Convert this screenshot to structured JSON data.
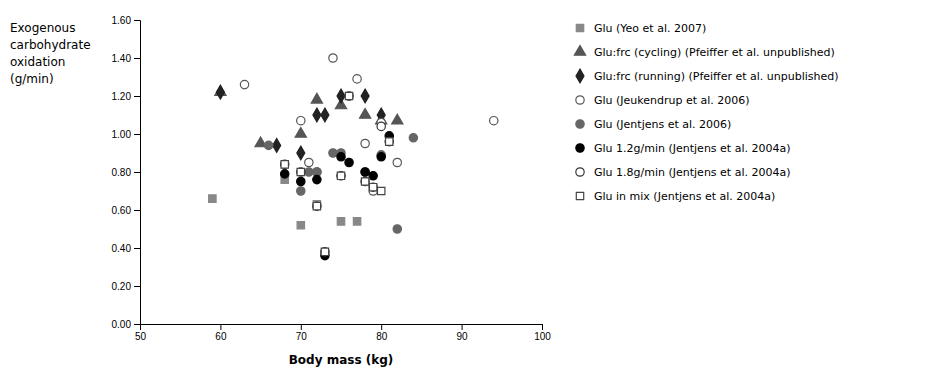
{
  "chart_data": {
    "type": "scatter",
    "xlabel": "Body mass (kg)",
    "ylabel": [
      "Exogenous",
      "carbohydrate",
      "oxidation",
      "(g/min)"
    ],
    "xlim": [
      50,
      100
    ],
    "ylim": [
      0.0,
      1.6
    ],
    "xticks": [
      50,
      60,
      70,
      80,
      90,
      100
    ],
    "yticks": [
      {
        "value": 0.0,
        "label": "0.00"
      },
      {
        "value": 0.2,
        "label": "0.20"
      },
      {
        "value": 0.4,
        "label": "0.40"
      },
      {
        "value": 0.6,
        "label": "0.60"
      },
      {
        "value": 0.8,
        "label": "0.80"
      },
      {
        "value": 1.0,
        "label": "1.00"
      },
      {
        "value": 1.2,
        "label": "1.20"
      },
      {
        "value": 1.4,
        "label": "1.40"
      },
      {
        "value": 1.6,
        "label": "1.60"
      }
    ],
    "grid": false,
    "legend": "right",
    "series": [
      {
        "name": "Glu (Yeo et al. 2007)",
        "color": "#888888",
        "marker": "square",
        "x": [
          59,
          68,
          70,
          72,
          75,
          77
        ],
        "values": [
          0.66,
          0.76,
          0.52,
          0.63,
          0.54,
          0.54
        ]
      },
      {
        "name": "Glu:frc (cycling) (Pfeiffer et al. unpublished)",
        "color": "#555555",
        "marker": "triangle",
        "x": [
          60,
          65,
          70,
          72,
          75,
          78,
          80,
          82
        ],
        "values": [
          1.22,
          0.95,
          1.0,
          1.18,
          1.15,
          1.1,
          1.07,
          1.07
        ]
      },
      {
        "name": "Glu:frc (running) (Pfeiffer et al. unpublished)",
        "color": "#222222",
        "marker": "diamond",
        "x": [
          60,
          67,
          70,
          72,
          73,
          75,
          78,
          80
        ],
        "values": [
          1.22,
          0.94,
          0.9,
          1.1,
          1.1,
          1.2,
          1.2,
          1.1
        ]
      },
      {
        "name": "Glu (Jeukendrup et al. 2006)",
        "color": "#555555",
        "marker": "circle-open",
        "x": [
          63,
          70,
          71,
          72,
          74,
          77,
          78,
          79,
          80,
          82,
          94
        ],
        "values": [
          1.26,
          1.07,
          0.85,
          0.8,
          1.4,
          1.29,
          0.95,
          0.7,
          1.06,
          0.85,
          1.07
        ]
      },
      {
        "name": "Glu (Jentjens et al. 2006)",
        "color": "#666666",
        "marker": "circle",
        "x": [
          66,
          70,
          71,
          72,
          74,
          75,
          78,
          80,
          82,
          84
        ],
        "values": [
          0.94,
          0.7,
          0.8,
          0.8,
          0.9,
          0.9,
          0.8,
          0.89,
          0.5,
          0.98
        ]
      },
      {
        "name": "Glu 1.2g/min (Jentjens et al. 2004a)",
        "color": "#000000",
        "marker": "circle",
        "x": [
          68,
          70,
          72,
          73,
          75,
          76,
          78,
          79,
          80,
          81
        ],
        "values": [
          0.79,
          0.75,
          0.76,
          0.36,
          0.88,
          0.85,
          0.8,
          0.78,
          0.88,
          0.99
        ]
      },
      {
        "name": "Glu 1.8g/min (Jentjens et al. 2004a)",
        "color": "#333333",
        "marker": "circle-open",
        "x": [
          68,
          70,
          72,
          73,
          75,
          76,
          78,
          79,
          80,
          81
        ],
        "values": [
          0.84,
          0.8,
          0.62,
          0.38,
          0.78,
          1.2,
          0.75,
          0.72,
          1.04,
          0.96
        ]
      },
      {
        "name": "Glu in mix (Jentjens et al. 2004a)",
        "color": "#444444",
        "marker": "square-open",
        "x": [
          68,
          70,
          72,
          73,
          75,
          76,
          78,
          79,
          80,
          81
        ],
        "values": [
          0.84,
          0.8,
          0.62,
          0.38,
          0.78,
          1.2,
          0.75,
          0.72,
          0.7,
          0.96
        ]
      }
    ]
  }
}
